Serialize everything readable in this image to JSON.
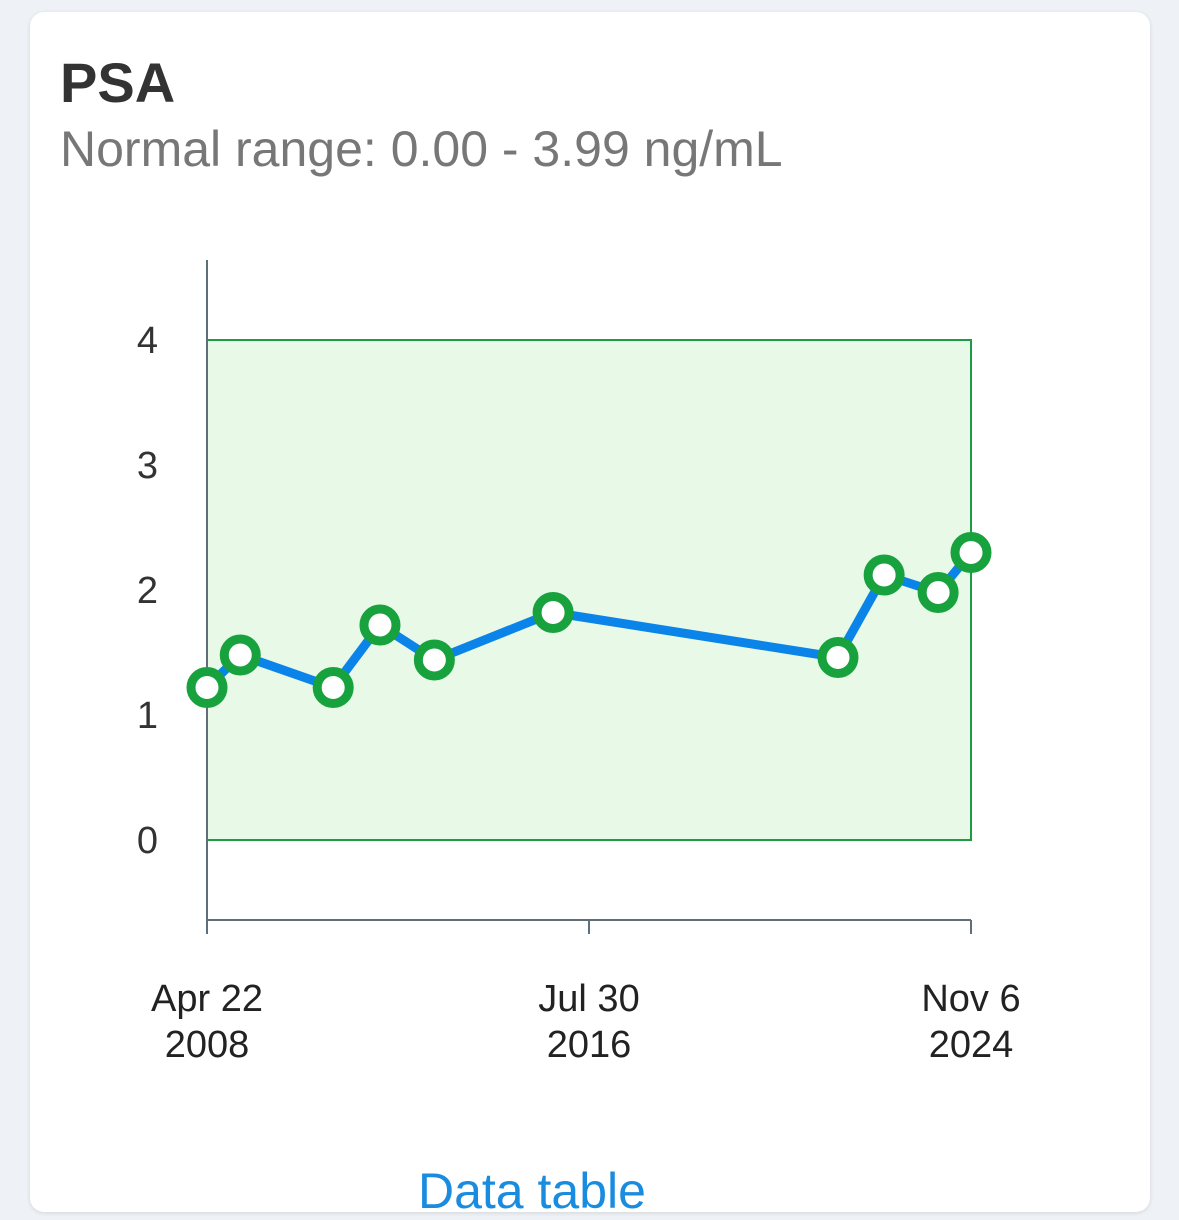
{
  "card": {
    "title": "PSA",
    "subtitle": "Normal range: 0.00 - 3.99 ng/mL",
    "link_label": "Data table"
  },
  "chart_data": {
    "type": "line",
    "title": "",
    "xlabel": "",
    "ylabel": "",
    "ylim": [
      -0.65,
      4.65
    ],
    "xlim": [
      "2008-04-22",
      "2024-11-06"
    ],
    "yticks": [
      0,
      1,
      2,
      3,
      4
    ],
    "xticks": [
      {
        "date": "2008-04-22",
        "line1": "Apr 22",
        "line2": "2008"
      },
      {
        "date": "2016-07-30",
        "line1": "Jul 30",
        "line2": "2016"
      },
      {
        "date": "2024-11-06",
        "line1": "Nov 6",
        "line2": "2024"
      }
    ],
    "normal_range": [
      0,
      4
    ],
    "grid": false,
    "colors": {
      "line": "#0a84e8",
      "marker": "#17a23e",
      "range_fill": "#e8f9e8",
      "range_stroke": "#1f9a45",
      "axis": "#5f6f7a"
    },
    "series": [
      {
        "points": [
          {
            "x": "2008-04-22",
            "y": 1.22
          },
          {
            "x": "2009-01-10",
            "y": 1.48
          },
          {
            "x": "2011-01-15",
            "y": 1.22
          },
          {
            "x": "2012-01-20",
            "y": 1.72
          },
          {
            "x": "2013-03-25",
            "y": 1.44
          },
          {
            "x": "2015-10-20",
            "y": 1.82
          },
          {
            "x": "2021-12-20",
            "y": 1.46
          },
          {
            "x": "2022-12-20",
            "y": 2.12
          },
          {
            "x": "2024-02-20",
            "y": 1.98
          },
          {
            "x": "2024-11-06",
            "y": 2.3
          }
        ]
      }
    ]
  }
}
